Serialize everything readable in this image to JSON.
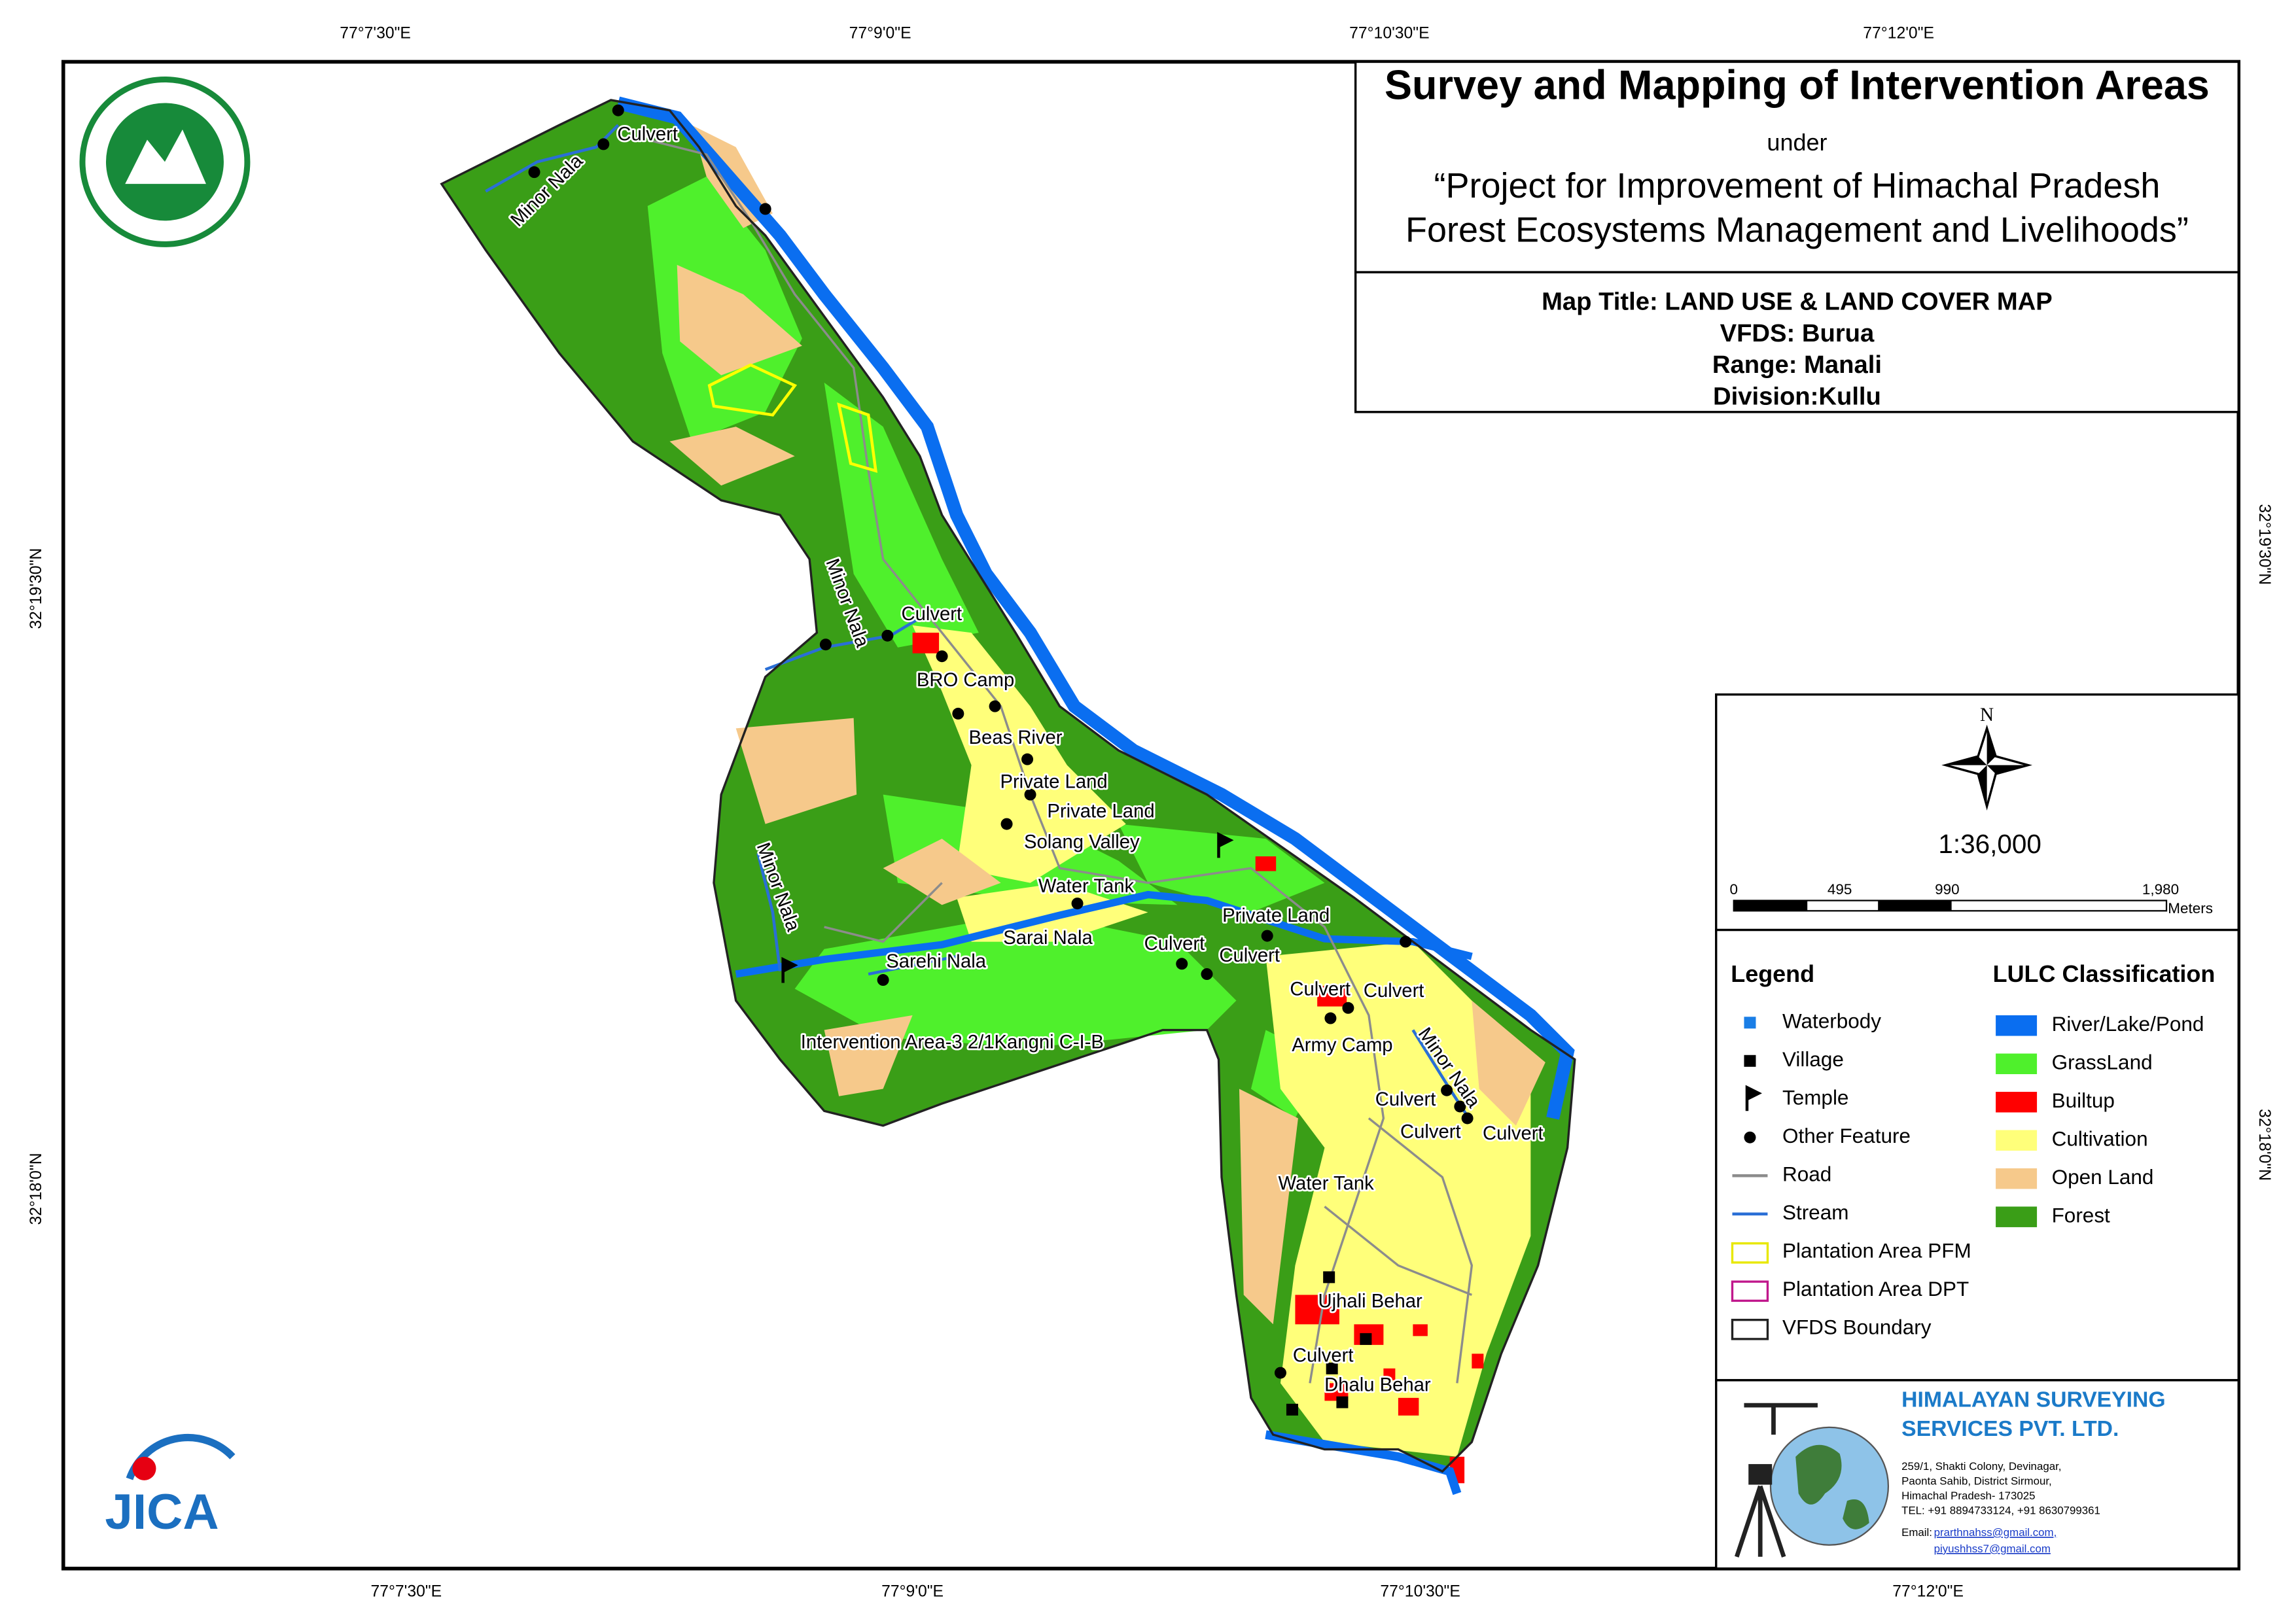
{
  "header": {
    "title": "Survey and Mapping of Intervention Areas",
    "under": "under",
    "project_line1": "“Project for Improvement of Himachal Pradesh",
    "project_line2": "Forest Ecosystems Management and Livelihoods”"
  },
  "map_info": {
    "map_title": "Map Title: LAND USE & LAND COVER MAP",
    "vfds": "VFDS: Burua",
    "range": "Range: Manali",
    "division": "Division:Kullu"
  },
  "coordinates": {
    "top": [
      "77°7'30\"E",
      "77°9'0\"E",
      "77°10'30\"E",
      "77°12'0\"E"
    ],
    "bottom": [
      "77°7'30\"E",
      "77°9'0\"E",
      "77°10'30\"E",
      "77°12'0\"E"
    ],
    "left": [
      "32°19'30\"N",
      "32°18'0\"N"
    ],
    "right": [
      "32°19'30\"N",
      "32°18'0\"N"
    ]
  },
  "north": "N",
  "scale": "1:36,000",
  "scale_bar": {
    "labels": [
      "0",
      "495",
      "990",
      "1,980"
    ],
    "unit": "Meters"
  },
  "legend": {
    "title": "Legend",
    "items": [
      "Waterbody",
      "Village",
      "Temple",
      "Other Feature",
      "Road",
      "Stream",
      "Plantation Area PFM",
      "Plantation Area DPT",
      "VFDS Boundary"
    ]
  },
  "lulc": {
    "title": "LULC Classification",
    "items": [
      {
        "name": "River/Lake/Pond",
        "color": "#0a6ef0"
      },
      {
        "name": "GrassLand",
        "color": "#4ff02c"
      },
      {
        "name": "Builtup",
        "color": "#ff0000"
      },
      {
        "name": "Cultivation",
        "color": "#ffff7a"
      },
      {
        "name": "Open Land",
        "color": "#f6c98b"
      },
      {
        "name": "Forest",
        "color": "#3a9e17"
      }
    ]
  },
  "map_labels": [
    "Culvert",
    "Minor Nala",
    "Minor Nala",
    "Culvert",
    "BRO Camp",
    "Beas River",
    "Private Land",
    "Private Land",
    "Solang Valley",
    "Water Tank",
    "Sarai Nala",
    "Culvert",
    "Culvert",
    "Private Land",
    "Culvert",
    "Culvert",
    "Army Camp",
    "Minor Nala",
    "Culvert",
    "Culvert",
    "Culvert",
    "Water Tank",
    "Ujhali Behar",
    "Culvert",
    "Dhalu Behar",
    "Minor Nala",
    "Sarehi Nala",
    "Intervention Area-3 2/1Kangni C-I-B"
  ],
  "jica": "JICA",
  "company": {
    "name_line1": "HIMALAYAN SURVEYING",
    "name_line2": "SERVICES PVT. LTD.",
    "address": [
      "259/1, Shakti Colony, Devinagar,",
      "Paonta Sahib, District Sirmour,",
      "Himachal Pradesh- 173025",
      "TEL: +91 8894733124, +91 8630799361"
    ],
    "email_label": "Email:",
    "emails": [
      "prarthnahss@gmail.com,",
      "piyushhss7@gmail.com"
    ]
  }
}
